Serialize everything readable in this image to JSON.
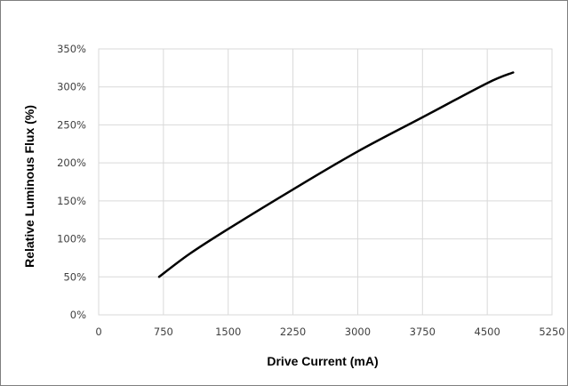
{
  "chart_data": {
    "type": "line",
    "title": "",
    "xlabel": "Drive Current (mA)",
    "ylabel": "Relative Luminous Flux (%)",
    "xlim": [
      0,
      5250
    ],
    "ylim": [
      0,
      350
    ],
    "x_ticks": [
      0,
      750,
      1500,
      2250,
      3000,
      3750,
      4500,
      5250
    ],
    "y_ticks": [
      0,
      50,
      100,
      150,
      200,
      250,
      300,
      350
    ],
    "x_tick_labels": [
      "0",
      "750",
      "1500",
      "2250",
      "3000",
      "3750",
      "4500",
      "5250"
    ],
    "y_tick_labels": [
      "0%",
      "50%",
      "100%",
      "150%",
      "200%",
      "250%",
      "300%",
      "350%"
    ],
    "grid": true,
    "legend": "none",
    "series": [
      {
        "color": "#000000",
        "x": [
          700,
          1050,
          1500,
          2250,
          3000,
          3750,
          4500,
          4800
        ],
        "y": [
          50,
          80,
          113,
          165,
          215,
          260,
          305,
          319
        ]
      }
    ]
  }
}
